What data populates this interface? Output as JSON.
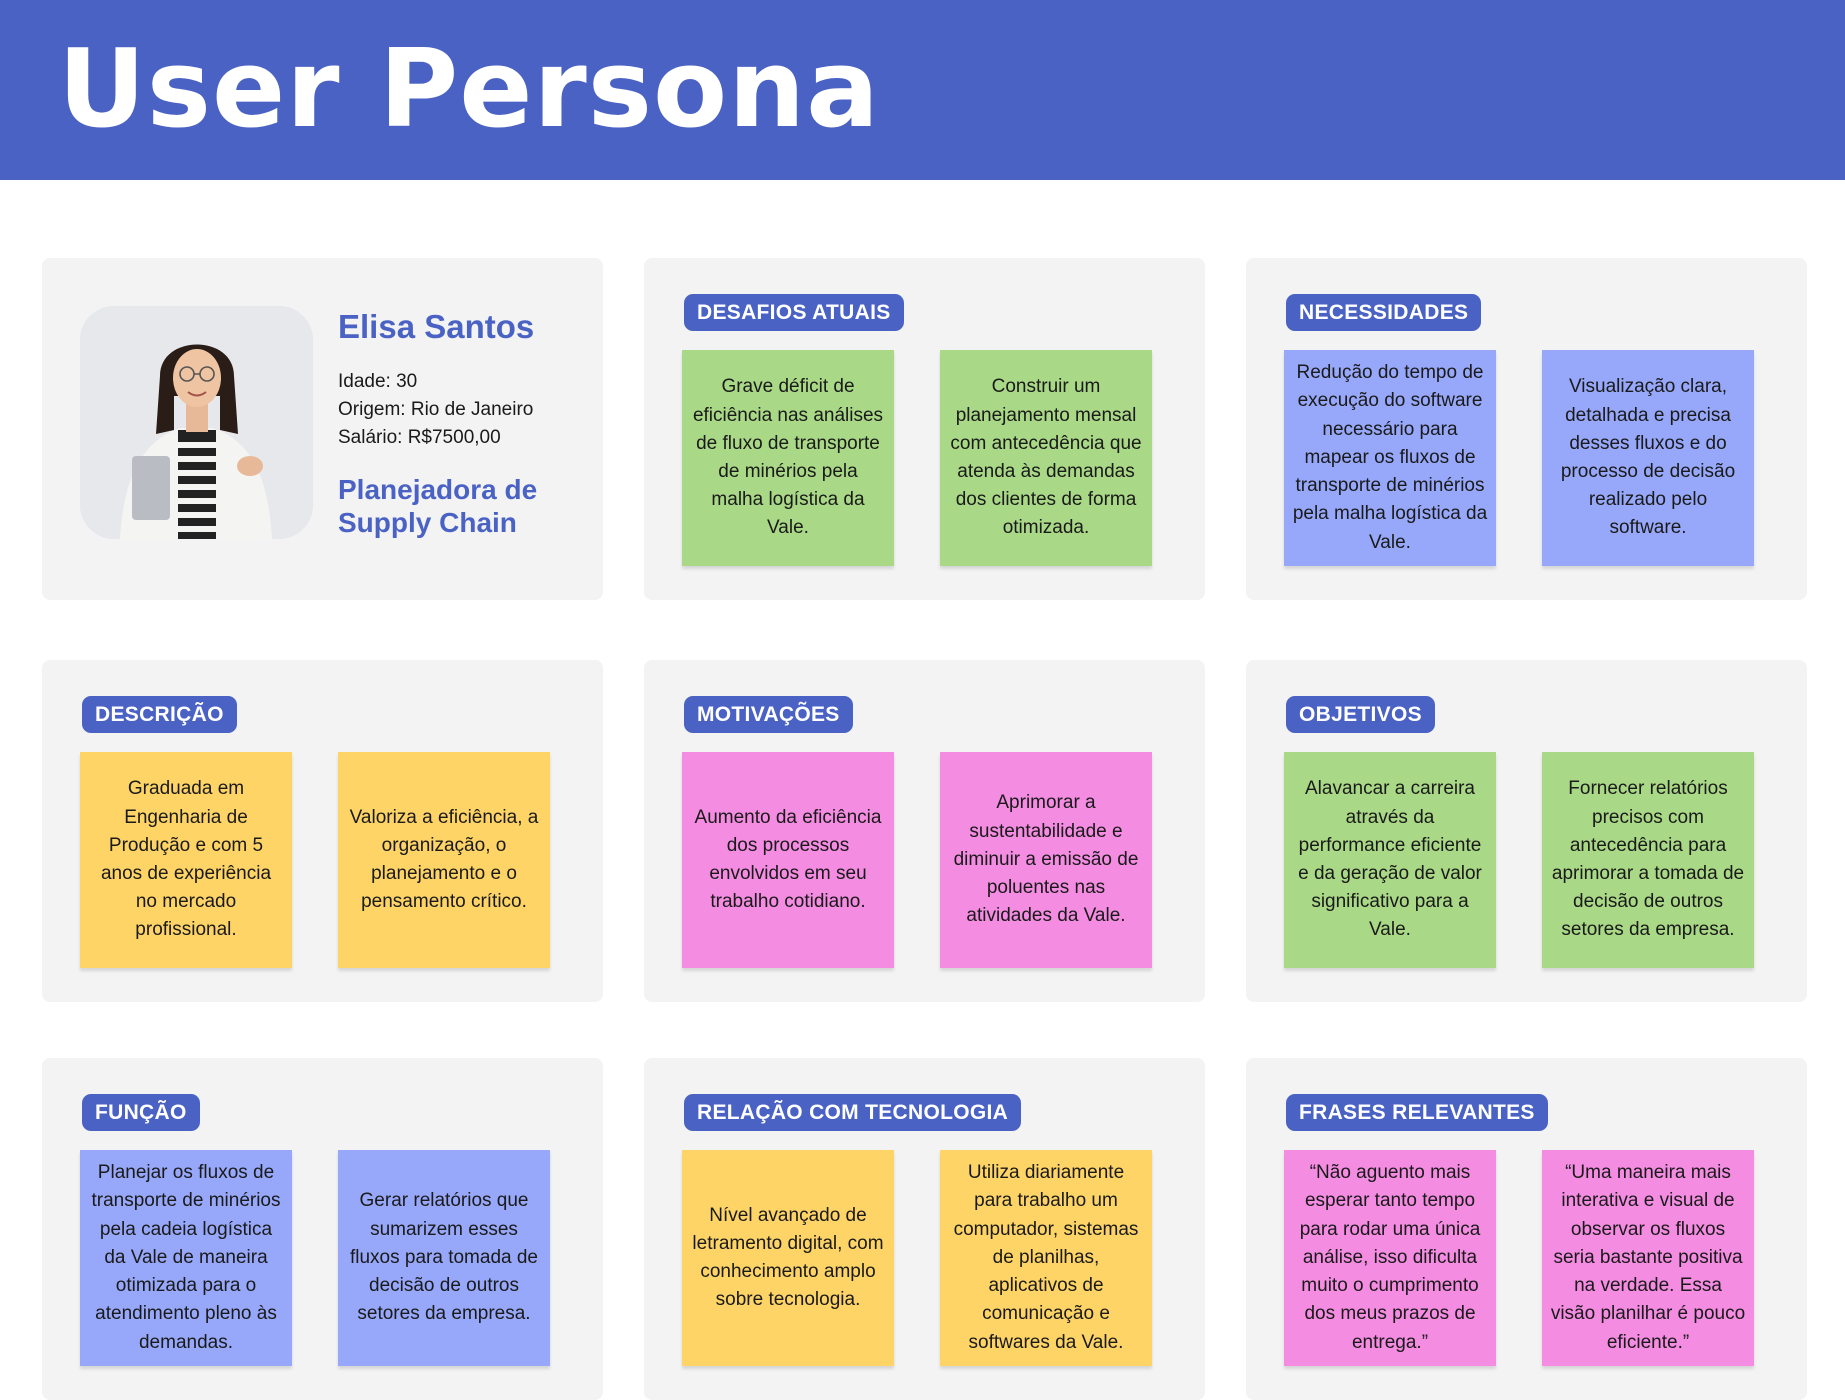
{
  "title": "User Persona",
  "colors": {
    "header": "#4a62c4",
    "panel": "#f3f3f4",
    "green_note": "#a9d886",
    "blue_note": "#97a8fa",
    "yellow_note": "#fed466",
    "pink_note": "#f48ce2"
  },
  "profile": {
    "name": "Elisa Santos",
    "age": "Idade: 30",
    "origin": "Origem: Rio de Janeiro",
    "salary": "Salário: R$7500,00",
    "role_line1": "Planejadora de",
    "role_line2": "Supply Chain",
    "photo": "person-photo"
  },
  "sections": {
    "desafios": {
      "title": "DESAFIOS ATUAIS",
      "notes": [
        "Grave déficit de eficiência nas análises de fluxo de transporte de minérios pela malha logística da Vale.",
        "Construir um planejamento mensal com antecedência que atenda às demandas dos clientes de forma otimizada."
      ]
    },
    "necessidades": {
      "title": "NECESSIDADES",
      "notes": [
        "Redução do tempo de execução do software necessário para mapear os fluxos de transporte de minérios pela malha logística da Vale.",
        "Visualização clara, detalhada e precisa desses fluxos e do processo de decisão realizado pelo software."
      ]
    },
    "descricao": {
      "title": "DESCRIÇÃO",
      "notes": [
        "Graduada em Engenharia de Produção e com 5 anos de experiência no mercado profissional.",
        "Valoriza a eficiência, a organização, o planejamento e o pensamento crítico."
      ]
    },
    "motivacoes": {
      "title": "MOTIVAÇÕES",
      "notes": [
        "Aumento da eficiência dos processos envolvidos em seu trabalho cotidiano.",
        "Aprimorar a sustentabilidade e diminuir a emissão de poluentes nas atividades da Vale."
      ]
    },
    "objetivos": {
      "title": "OBJETIVOS",
      "notes": [
        "Alavancar a carreira através da performance eficiente e da geração de valor significativo para a Vale.",
        "Fornecer relatórios precisos com antecedência para aprimorar a tomada de decisão de outros setores da empresa."
      ]
    },
    "funcao": {
      "title": "FUNÇÃO",
      "notes": [
        "Planejar os fluxos de transporte de minérios pela cadeia logística da Vale de maneira otimizada para o atendimento pleno às demandas.",
        "Gerar relatórios que sumarizem esses fluxos para tomada de decisão de outros setores da empresa."
      ]
    },
    "tecnologia": {
      "title": "RELAÇÃO COM TECNOLOGIA",
      "notes": [
        "Nível avançado de letramento digital, com conhecimento amplo sobre tecnologia.",
        "Utiliza diariamente para trabalho um computador, sistemas de planilhas, aplicativos de comunicação e softwares da Vale."
      ]
    },
    "frases": {
      "title": "FRASES RELEVANTES",
      "notes": [
        "“Não aguento mais esperar tanto tempo para rodar uma única análise, isso dificulta muito o cumprimento dos meus prazos de entrega.”",
        "“Uma maneira mais interativa e visual de observar os fluxos seria bastante positiva na verdade. Essa visão planilhar é pouco eficiente.”"
      ]
    }
  }
}
